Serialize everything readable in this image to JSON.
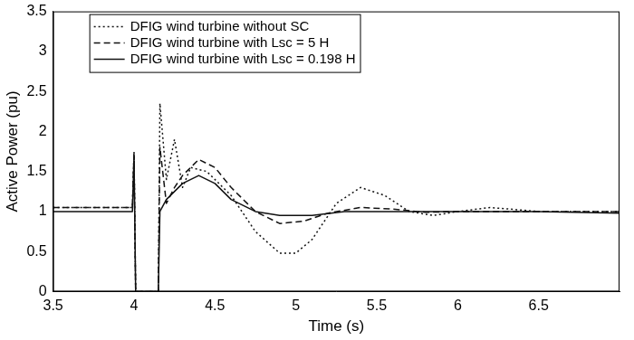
{
  "chart_data": {
    "type": "line",
    "x_label": "Time (s)",
    "y_label": "Active Power (pu)",
    "xlim": [
      3.5,
      7
    ],
    "xticks": [
      3.5,
      4,
      4.5,
      5,
      5.5,
      6,
      6.5
    ],
    "ylim": [
      0,
      3.5
    ],
    "yticks": [
      0,
      0.5,
      1,
      1.5,
      2,
      2.5,
      3,
      3.5
    ],
    "grid": false,
    "legend": "upper left",
    "series": [
      {
        "name": "DFIG wind turbine without SC",
        "color": "#111111",
        "line_style": "dotted",
        "x": [
          3.5,
          3.99,
          4.0,
          4.01,
          4.15,
          4.16,
          4.2,
          4.25,
          4.3,
          4.35,
          4.45,
          4.6,
          4.75,
          4.9,
          5.0,
          5.1,
          5.25,
          5.4,
          5.55,
          5.7,
          5.85,
          6.0,
          6.2,
          6.5,
          7.0
        ],
        "values": [
          1.05,
          1.05,
          1.75,
          0,
          0,
          2.35,
          1.4,
          1.9,
          1.3,
          1.55,
          1.5,
          1.2,
          0.75,
          0.48,
          0.48,
          0.65,
          1.1,
          1.3,
          1.2,
          1.0,
          0.95,
          1.0,
          1.05,
          1.0,
          1.0
        ]
      },
      {
        "name": "DFIG wind turbine with Lsc = 5 H",
        "color": "#111111",
        "line_style": "dashed",
        "x": [
          3.5,
          3.99,
          4.0,
          4.01,
          4.15,
          4.16,
          4.2,
          4.25,
          4.3,
          4.4,
          4.5,
          4.6,
          4.75,
          4.9,
          5.05,
          5.2,
          5.4,
          5.6,
          5.8,
          6.0,
          6.5,
          7.0
        ],
        "values": [
          1.05,
          1.05,
          1.7,
          0,
          0,
          1.8,
          1.1,
          1.3,
          1.45,
          1.65,
          1.55,
          1.3,
          1.0,
          0.85,
          0.88,
          0.98,
          1.05,
          1.03,
          0.99,
          1.0,
          1.0,
          1.0
        ]
      },
      {
        "name": "DFIG wind turbine with Lsc = 0.198 H",
        "color": "#111111",
        "line_style": "solid",
        "x": [
          3.5,
          3.99,
          4.0,
          4.01,
          4.15,
          4.16,
          4.2,
          4.3,
          4.4,
          4.5,
          4.6,
          4.75,
          4.9,
          5.1,
          5.3,
          5.6,
          6.0,
          6.5,
          7.0
        ],
        "values": [
          1.0,
          1.0,
          1.7,
          0,
          0,
          1.0,
          1.15,
          1.35,
          1.45,
          1.35,
          1.15,
          1.0,
          0.95,
          0.95,
          1.0,
          1.0,
          1.0,
          1.0,
          0.98
        ]
      }
    ]
  }
}
